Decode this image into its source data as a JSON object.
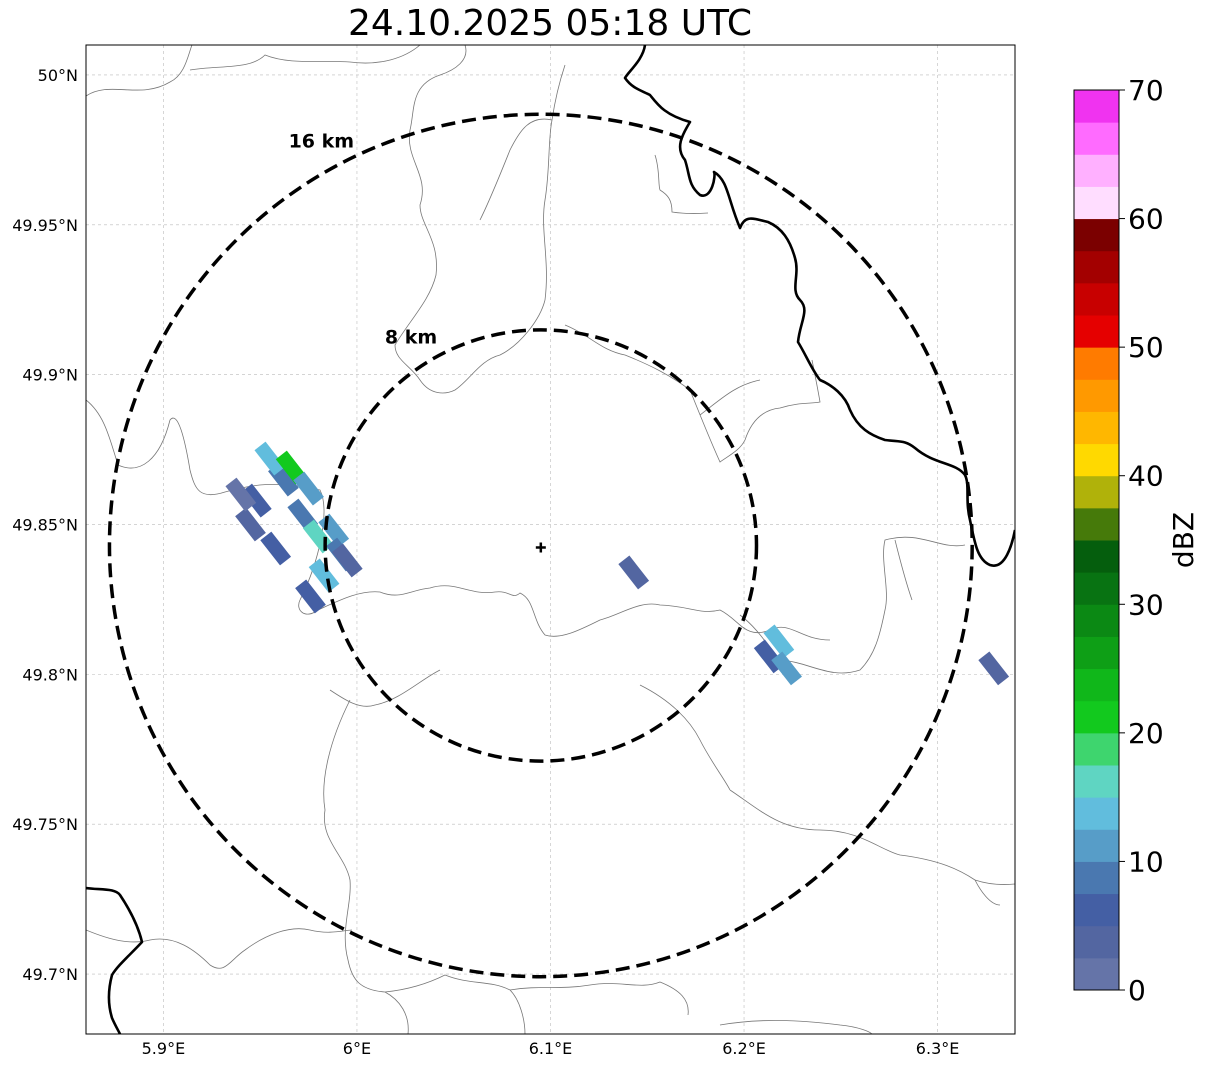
{
  "title": "24.10.2025 05:18 UTC",
  "map": {
    "lon_range": [
      5.86,
      6.34
    ],
    "lat_range": [
      49.68,
      50.01
    ],
    "lon_ticks": [
      {
        "value": 5.9,
        "label": "5.9°E"
      },
      {
        "value": 6.0,
        "label": "6°E"
      },
      {
        "value": 6.1,
        "label": "6.1°E"
      },
      {
        "value": 6.2,
        "label": "6.2°E"
      },
      {
        "value": 6.3,
        "label": "6.3°E"
      }
    ],
    "lat_ticks": [
      {
        "value": 50.0,
        "label": "50°N"
      },
      {
        "value": 49.95,
        "label": "49.95°N"
      },
      {
        "value": 49.9,
        "label": "49.9°N"
      },
      {
        "value": 49.85,
        "label": "49.85°N"
      },
      {
        "value": 49.8,
        "label": "49.8°N"
      },
      {
        "value": 49.75,
        "label": "49.75°N"
      },
      {
        "value": 49.7,
        "label": "49.7°N"
      }
    ],
    "gridlines": true,
    "radar_site": {
      "lon": 6.095,
      "lat": 49.843
    },
    "range_rings": [
      {
        "label": "8 km",
        "radius_km": 8
      },
      {
        "label": "16 km",
        "radius_km": 16
      }
    ]
  },
  "colorbar": {
    "label": "dBZ",
    "min": 0,
    "max": 70,
    "tick_labels": [
      "0",
      "10",
      "20",
      "30",
      "40",
      "50",
      "60",
      "70"
    ],
    "colors": [
      "#6574a8",
      "#5366a1",
      "#445fa4",
      "#4a78b0",
      "#579dc8",
      "#61bddd",
      "#5fd5c2",
      "#3ed56e",
      "#12c91e",
      "#10b71a",
      "#0e9f16",
      "#0b8914",
      "#087312",
      "#055e0d",
      "#467a0a",
      "#b0b20a",
      "#ffd900",
      "#ffb700",
      "#ff9900",
      "#ff7b00",
      "#e50000",
      "#c80000",
      "#a30000",
      "#7b0000",
      "#ffddff",
      "#ffb0ff",
      "#ff6bff",
      "#f033f0"
    ]
  },
  "echoes": [
    {
      "lon": 5.962,
      "lat": 49.865,
      "dbz": 8
    },
    {
      "lon": 5.955,
      "lat": 49.872,
      "dbz": 14
    },
    {
      "lon": 5.948,
      "lat": 49.858,
      "dbz": 6
    },
    {
      "lon": 5.966,
      "lat": 49.869,
      "dbz": 21
    },
    {
      "lon": 5.975,
      "lat": 49.862,
      "dbz": 12
    },
    {
      "lon": 5.972,
      "lat": 49.853,
      "dbz": 9
    },
    {
      "lon": 5.98,
      "lat": 49.846,
      "dbz": 16
    },
    {
      "lon": 5.988,
      "lat": 49.848,
      "dbz": 11
    },
    {
      "lon": 5.992,
      "lat": 49.84,
      "dbz": 8
    },
    {
      "lon": 5.983,
      "lat": 49.833,
      "dbz": 14
    },
    {
      "lon": 5.976,
      "lat": 49.826,
      "dbz": 6
    },
    {
      "lon": 5.958,
      "lat": 49.842,
      "dbz": 5
    },
    {
      "lon": 5.945,
      "lat": 49.85,
      "dbz": 3
    },
    {
      "lon": 5.94,
      "lat": 49.86,
      "dbz": 2
    },
    {
      "lon": 5.995,
      "lat": 49.838,
      "dbz": 4
    },
    {
      "lon": 6.143,
      "lat": 49.834,
      "dbz": 4
    },
    {
      "lon": 6.213,
      "lat": 49.806,
      "dbz": 6
    },
    {
      "lon": 6.218,
      "lat": 49.811,
      "dbz": 13
    },
    {
      "lon": 6.222,
      "lat": 49.802,
      "dbz": 12
    },
    {
      "lon": 6.329,
      "lat": 49.802,
      "dbz": 3
    }
  ]
}
